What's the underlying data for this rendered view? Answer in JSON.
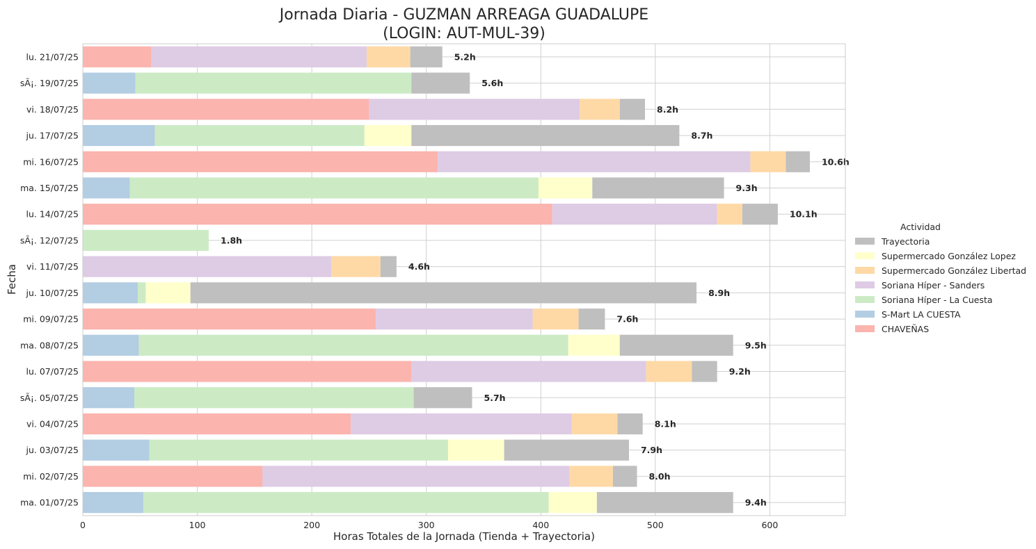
{
  "chart_data": {
    "type": "bar",
    "orientation": "horizontal",
    "stacked": true,
    "title_line1": "Jornada Diaria - GUZMAN ARREAGA GUADALUPE",
    "title_line2": "(LOGIN: AUT-MUL-39)",
    "xlabel": "Horas Totales de la Jornada (Tienda + Trayectoria)",
    "ylabel": "Fecha",
    "xlim": [
      0,
      666
    ],
    "xticks": [
      0,
      100,
      200,
      300,
      400,
      500,
      600
    ],
    "grid": true,
    "legend_placement": "right",
    "legend_title": "Actividad",
    "categories": [
      "lu. 21/07/25",
      "sÃ¡. 19/07/25",
      "vi. 18/07/25",
      "ju. 17/07/25",
      "mi. 16/07/25",
      "ma. 15/07/25",
      "lu. 14/07/25",
      "sÃ¡. 12/07/25",
      "vi. 11/07/25",
      "ju. 10/07/25",
      "mi. 09/07/25",
      "ma. 08/07/25",
      "lu. 07/07/25",
      "sÃ¡. 05/07/25",
      "vi. 04/07/25",
      "ju. 03/07/25",
      "mi. 02/07/25",
      "ma. 01/07/25"
    ],
    "series": [
      {
        "name": "CHAVEÑAS",
        "color": "#fbb4ae",
        "values": [
          60,
          0,
          250,
          0,
          310,
          0,
          410,
          0,
          0,
          0,
          256,
          0,
          287,
          0,
          234,
          0,
          157,
          0
        ]
      },
      {
        "name": "S-Mart LA CUESTA",
        "color": "#b3cde3",
        "values": [
          0,
          46,
          0,
          63,
          0,
          41,
          0,
          0,
          0,
          48,
          0,
          49,
          0,
          45,
          0,
          58,
          0,
          53
        ]
      },
      {
        "name": "Soriana Híper - La Cuesta",
        "color": "#ccebc5",
        "values": [
          0,
          241,
          0,
          183,
          0,
          357,
          0,
          110,
          0,
          7,
          0,
          375,
          0,
          244,
          0,
          261,
          0,
          354
        ]
      },
      {
        "name": "Soriana Híper - Sanders",
        "color": "#decbe4",
        "values": [
          188,
          0,
          184,
          0,
          273,
          0,
          144,
          0,
          217,
          0,
          137,
          0,
          205,
          0,
          193,
          0,
          268,
          0
        ]
      },
      {
        "name": "Supermercado González Libertad",
        "color": "#fed9a6",
        "values": [
          38,
          0,
          35,
          0,
          31,
          0,
          22,
          0,
          43,
          0,
          40,
          0,
          40,
          0,
          40,
          0,
          38,
          0
        ]
      },
      {
        "name": "Supermercado González Lopez",
        "color": "#ffffcc",
        "values": [
          0,
          0,
          0,
          41,
          0,
          47,
          0,
          0,
          0,
          39,
          0,
          45,
          0,
          0,
          0,
          49,
          0,
          42
        ]
      },
      {
        "name": "Trayectoria",
        "color": "#bfbfbf",
        "values": [
          28,
          51,
          22,
          234,
          21,
          115,
          31,
          0,
          14,
          442,
          23,
          99,
          22,
          51,
          22,
          109,
          21,
          119
        ]
      }
    ],
    "total_labels": [
      "5.2h",
      "5.6h",
      "8.2h",
      "8.7h",
      "10.6h",
      "9.3h",
      "10.1h",
      "1.8h",
      "4.6h",
      "8.9h",
      "7.6h",
      "9.5h",
      "9.2h",
      "5.7h",
      "8.1h",
      "7.9h",
      "8.0h",
      "9.4h"
    ],
    "legend_order": [
      "Trayectoria",
      "Supermercado González Lopez",
      "Supermercado González Libertad",
      "Soriana Híper - Sanders",
      "Soriana Híper - La Cuesta",
      "S-Mart LA CUESTA",
      "CHAVEÑAS"
    ]
  }
}
